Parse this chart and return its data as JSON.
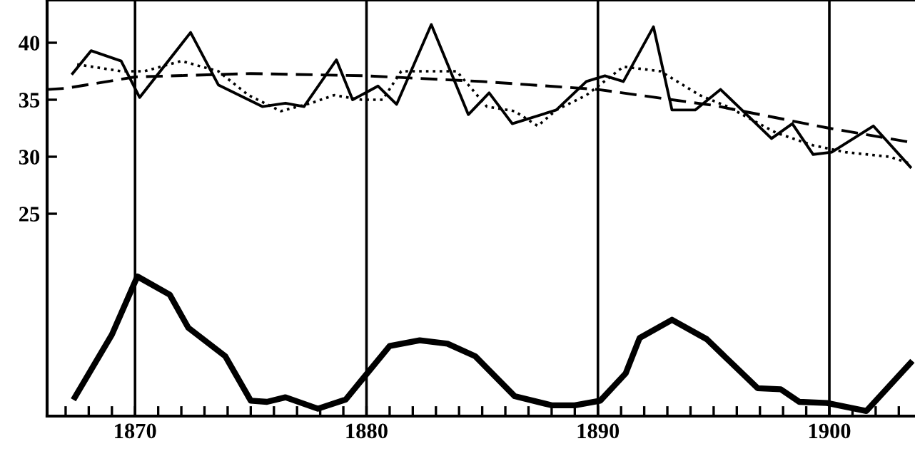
{
  "chart_data": {
    "type": "line",
    "xlim": [
      1866.2,
      1903.7
    ],
    "ylim": [
      7.25,
      43.75
    ],
    "xticks": [
      {
        "value": 1867,
        "label": null
      },
      {
        "value": 1868,
        "label": null
      },
      {
        "value": 1869,
        "label": null
      },
      1870,
      {
        "value": 1871,
        "label": null
      },
      {
        "value": 1872,
        "label": null
      },
      {
        "value": 1873,
        "label": null
      },
      {
        "value": 1874,
        "label": null
      },
      {
        "value": 1875,
        "label": null
      },
      {
        "value": 1876,
        "label": null
      },
      {
        "value": 1877,
        "label": null
      },
      {
        "value": 1878,
        "label": null
      },
      {
        "value": 1879,
        "label": null
      },
      1880,
      {
        "value": 1881,
        "label": null
      },
      {
        "value": 1882,
        "label": null
      },
      {
        "value": 1883,
        "label": null
      },
      {
        "value": 1884,
        "label": null
      },
      {
        "value": 1885,
        "label": null
      },
      {
        "value": 1886,
        "label": null
      },
      {
        "value": 1887,
        "label": null
      },
      {
        "value": 1888,
        "label": null
      },
      {
        "value": 1889,
        "label": null
      },
      1890,
      {
        "value": 1891,
        "label": null
      },
      {
        "value": 1892,
        "label": null
      },
      {
        "value": 1893,
        "label": null
      },
      {
        "value": 1894,
        "label": null
      },
      {
        "value": 1895,
        "label": null
      },
      {
        "value": 1896,
        "label": null
      },
      {
        "value": 1897,
        "label": null
      },
      {
        "value": 1898,
        "label": null
      },
      {
        "value": 1899,
        "label": null
      },
      1900,
      {
        "value": 1901,
        "label": null
      },
      {
        "value": 1902,
        "label": null
      },
      {
        "value": 1903,
        "label": null
      }
    ],
    "yticks": [
      25,
      30,
      35,
      40
    ],
    "grid": false,
    "legend": false,
    "marker": "none",
    "ref_lines": [
      {
        "axis": "x",
        "value": 1870,
        "color": "#000000",
        "line_style": "solid"
      },
      {
        "axis": "x",
        "value": 1880,
        "color": "#000000",
        "line_style": "solid"
      },
      {
        "axis": "x",
        "value": 1890,
        "color": "#000000",
        "line_style": "solid"
      },
      {
        "axis": "x",
        "value": 1900,
        "color": "#000000",
        "line_style": "solid"
      }
    ],
    "series": [
      {
        "color": "#000000",
        "line_style": "solid",
        "x": [
          1867.3,
          1868.1,
          1869.4,
          1870.2,
          1872.4,
          1873.6,
          1875.5,
          1876.5,
          1877.3,
          1878.7,
          1879.4,
          1880.5,
          1881.3,
          1882.8,
          1884.4,
          1885.3,
          1886.3,
          1888.2,
          1889.5,
          1890.3,
          1891.1,
          1892.4,
          1893.2,
          1894.2,
          1895.3,
          1897.5,
          1898.4,
          1899.3,
          1900.1,
          1901.9,
          1903.5
        ],
        "values": [
          37.3,
          39.3,
          38.4,
          35.2,
          40.9,
          36.3,
          34.4,
          34.7,
          34.4,
          38.5,
          35.0,
          36.2,
          34.6,
          41.6,
          33.7,
          35.6,
          32.9,
          34.1,
          36.6,
          37.1,
          36.6,
          41.4,
          34.1,
          34.1,
          35.9,
          31.6,
          32.9,
          30.2,
          30.4,
          32.7,
          29.1
        ]
      },
      {
        "color": "#000000",
        "line_style": "dotted",
        "x": [
          1867.5,
          1869.4,
          1870.4,
          1872.0,
          1873.6,
          1874.9,
          1876.3,
          1877.6,
          1878.6,
          1879.8,
          1880.7,
          1881.5,
          1882.7,
          1883.9,
          1885.2,
          1886.4,
          1887.4,
          1888.2,
          1889.5,
          1891.1,
          1892.7,
          1894.4,
          1895.6,
          1897.7,
          1899.3,
          1900.7,
          1902.6,
          1903.5
        ],
        "values": [
          38.1,
          37.5,
          37.5,
          38.4,
          37.5,
          35.4,
          34.0,
          34.7,
          35.4,
          35.0,
          35.0,
          37.5,
          37.5,
          37.5,
          34.4,
          34.0,
          32.7,
          34.1,
          35.4,
          37.9,
          37.5,
          35.4,
          34.4,
          32.1,
          31.0,
          30.4,
          30.0,
          29.4
        ]
      },
      {
        "color": "#000000",
        "line_style": "dashed",
        "x": [
          1866.2,
          1867,
          1870,
          1875,
          1880,
          1885,
          1890,
          1895,
          1900,
          1903.7
        ],
        "values": [
          35.9,
          36.0,
          37.0,
          37.3,
          37.1,
          36.6,
          35.9,
          34.5,
          32.5,
          31.2
        ]
      },
      {
        "color": "#000000",
        "line_style": "solid",
        "x": [
          1867.4,
          1869.0,
          1870.1,
          1871.5,
          1872.3,
          1873.9,
          1875.0,
          1875.7,
          1876.5,
          1877.9,
          1879.1,
          1881.0,
          1882.3,
          1883.5,
          1884.7,
          1886.4,
          1888.0,
          1889.0,
          1890.1,
          1891.2,
          1891.8,
          1893.2,
          1894.7,
          1896.9,
          1897.9,
          1898.7,
          1899.9,
          1901.6,
          1903.5
        ],
        "values": [
          8.9,
          14.4,
          19.5,
          17.9,
          15.0,
          12.5,
          8.6,
          8.5,
          8.9,
          7.9,
          8.7,
          13.4,
          13.9,
          13.6,
          12.5,
          9.0,
          8.2,
          8.2,
          8.6,
          11.0,
          14.1,
          15.7,
          14.0,
          9.7,
          9.6,
          8.5,
          8.4,
          7.7,
          11.9
        ]
      }
    ]
  }
}
